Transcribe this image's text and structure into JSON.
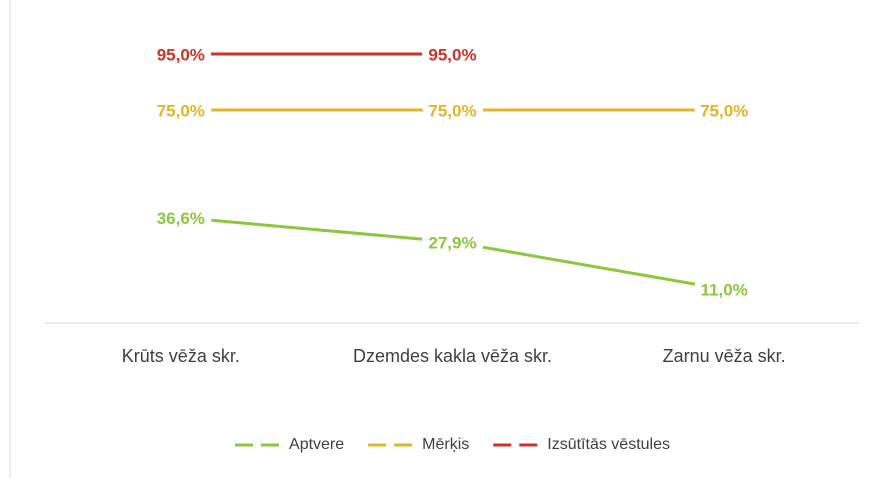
{
  "chart_data": {
    "type": "line",
    "categories": [
      "Krūts vēža skr.",
      "Dzemdes kakla vēža skr.",
      "Zarnu vēža skr."
    ],
    "series": [
      {
        "name": "Aptvere",
        "color": "#8dc63f",
        "values": [
          36.6,
          27.9,
          11.0
        ],
        "value_labels": [
          "36,6%",
          "27,9%",
          "11,0%"
        ]
      },
      {
        "name": "Mērķis",
        "color": "#e0b628",
        "values": [
          75,
          75,
          75
        ],
        "value_labels": [
          "75,0%",
          "75,0%",
          "75,0%"
        ]
      },
      {
        "name": "Izsūtītās vēstules",
        "color": "#c9342a",
        "values": [
          95,
          95,
          null
        ],
        "value_labels": [
          "95,0%",
          "95,0%",
          null
        ]
      }
    ],
    "ylim": [
      0,
      100
    ]
  }
}
